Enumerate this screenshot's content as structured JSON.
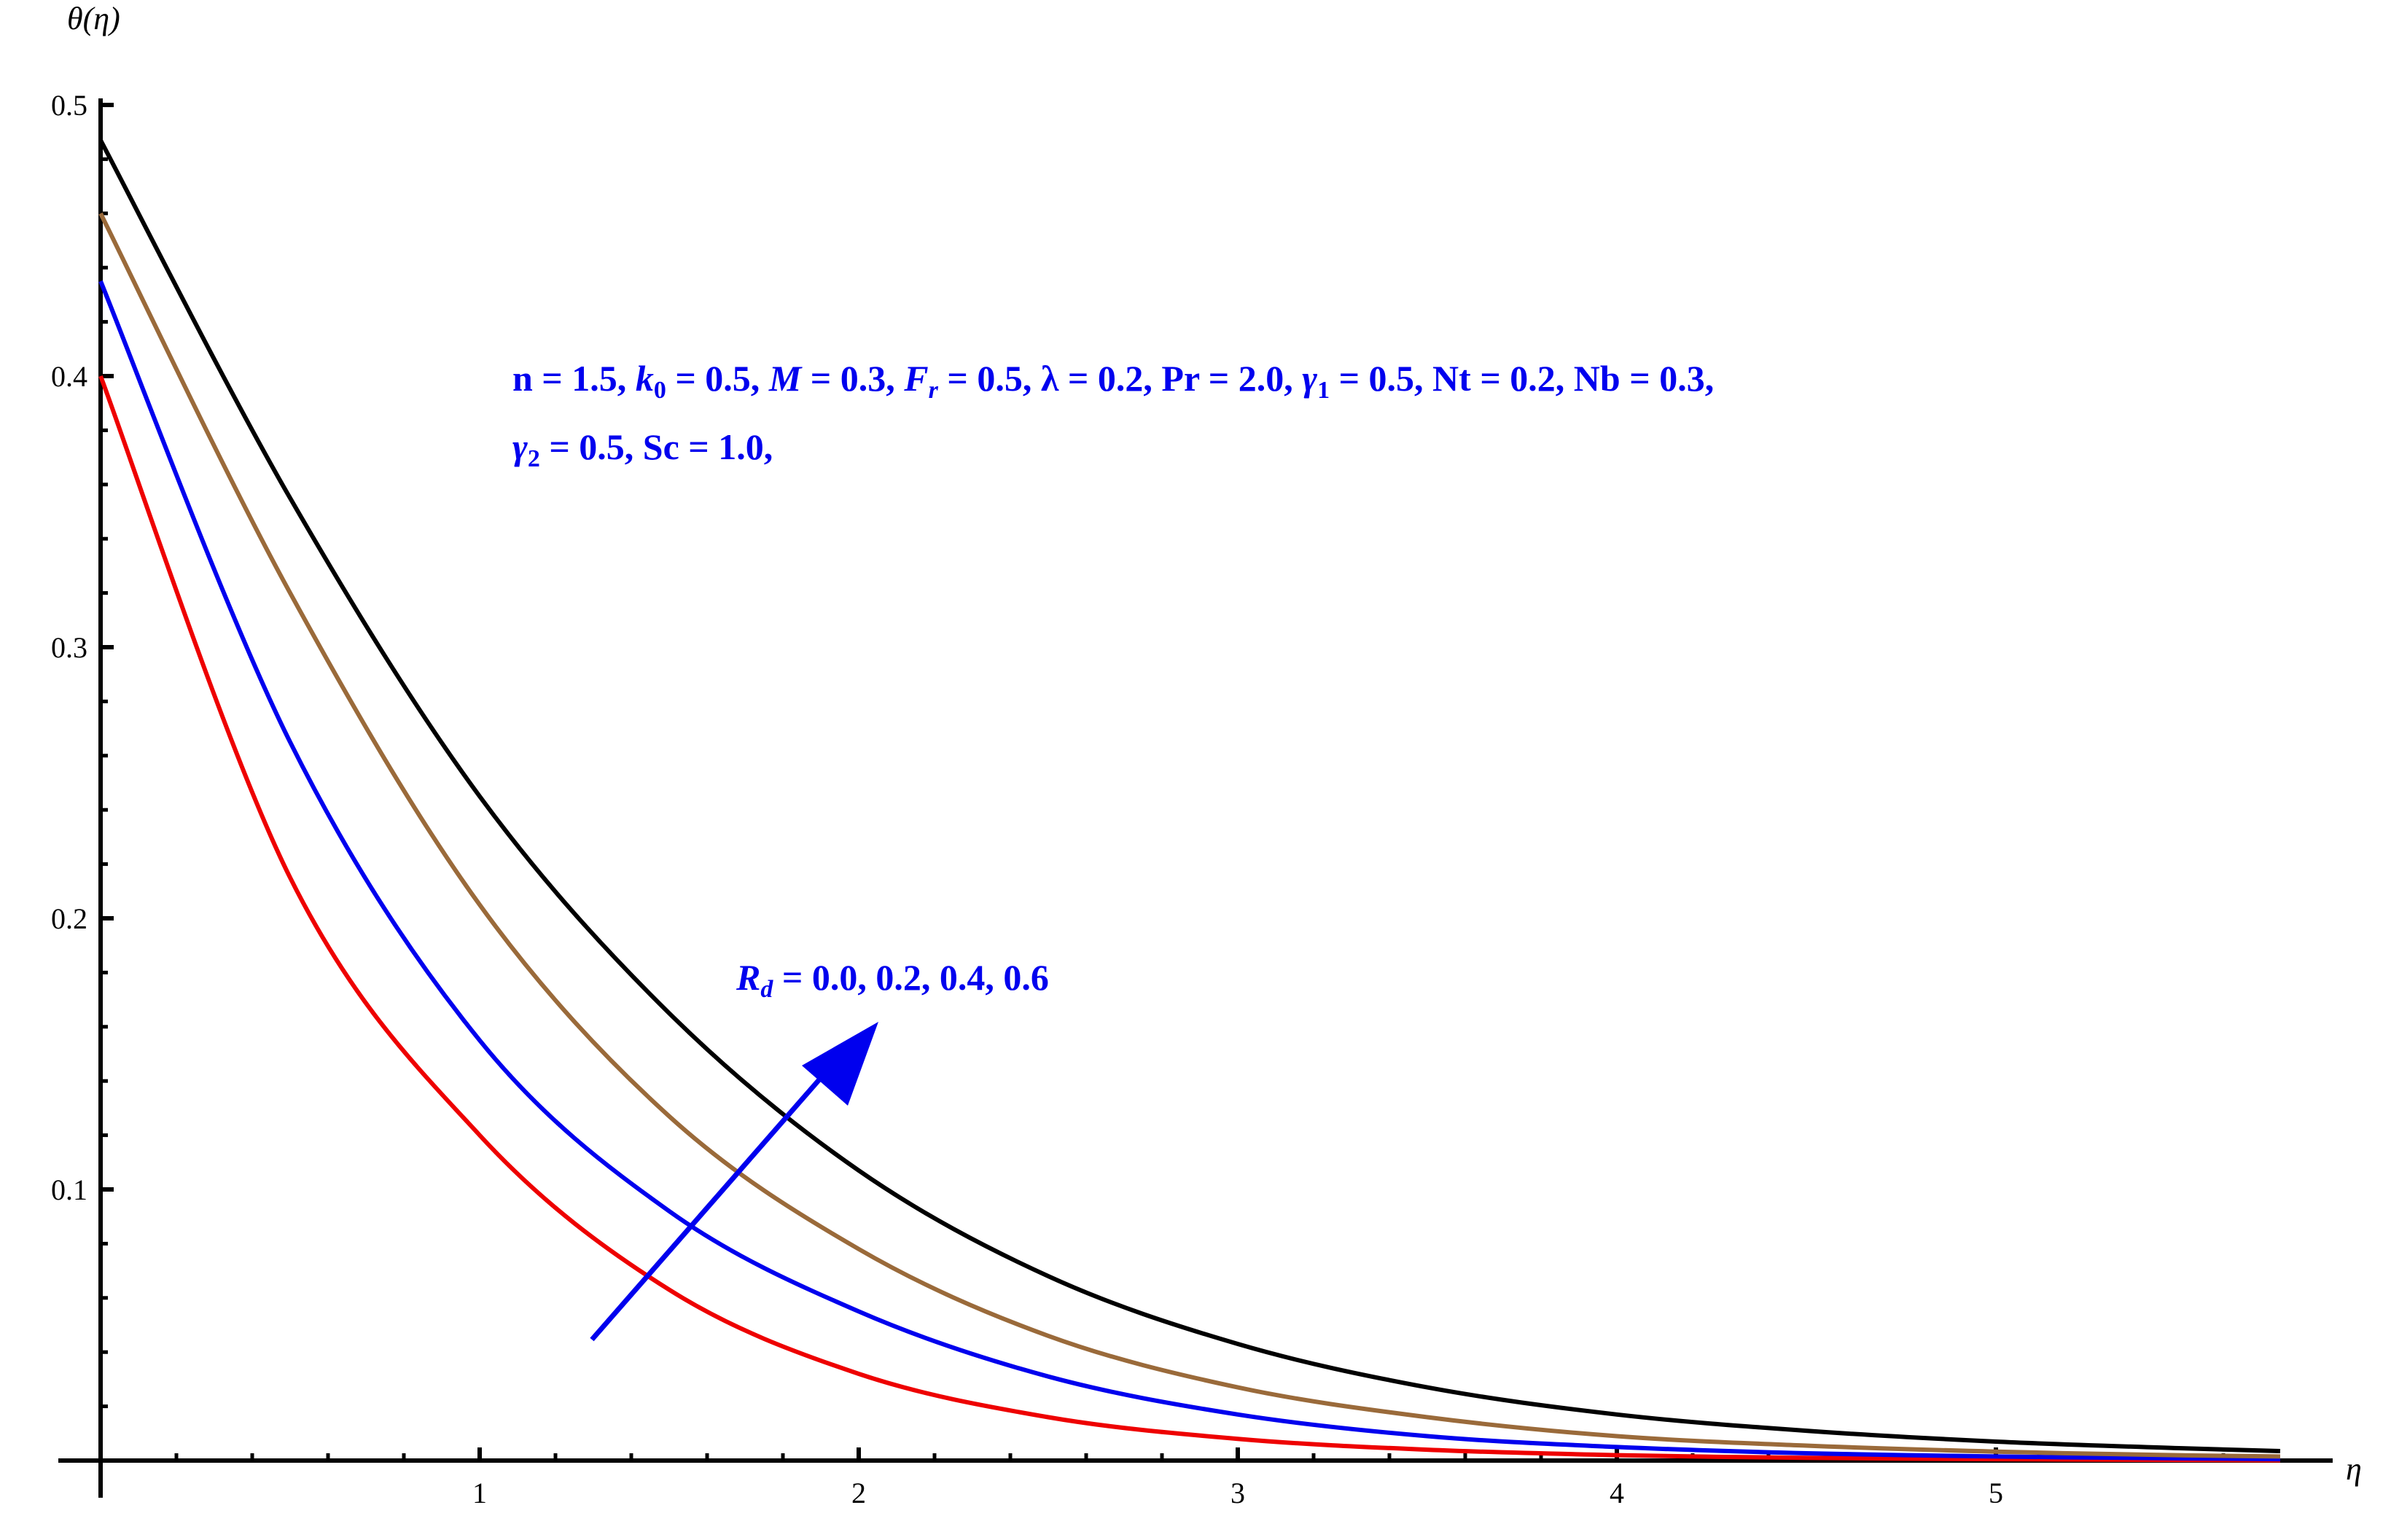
{
  "chart_data": {
    "type": "line",
    "xlabel": "η",
    "ylabel": "θ(η)",
    "xlim": [
      0,
      5.8
    ],
    "ylim": [
      0,
      0.5
    ],
    "x_ticks": [
      "1",
      "2",
      "3",
      "4",
      "5"
    ],
    "y_ticks": [
      "0.1",
      "0.2",
      "0.3",
      "0.4",
      "0.5"
    ],
    "grid": false,
    "legend": "none",
    "x": [
      0,
      0.5,
      1,
      1.5,
      2,
      2.5,
      3,
      3.5,
      4,
      4.5,
      5,
      5.5,
      5.75
    ],
    "series": [
      {
        "color": "#ee0000",
        "values": [
          0.4,
          0.215,
          0.12,
          0.063,
          0.032,
          0.016,
          0.008,
          0.004,
          0.002,
          0.001,
          0.0005,
          0.0002,
          0.0001
        ]
      },
      {
        "color": "#0000ee",
        "values": [
          0.435,
          0.265,
          0.155,
          0.092,
          0.055,
          0.031,
          0.017,
          0.009,
          0.005,
          0.0027,
          0.0015,
          0.0008,
          0.0005
        ]
      },
      {
        "color": "#9a6a3a",
        "values": [
          0.46,
          0.32,
          0.205,
          0.127,
          0.078,
          0.046,
          0.027,
          0.016,
          0.009,
          0.0055,
          0.0033,
          0.0019,
          0.0015
        ]
      },
      {
        "color": "#000000",
        "values": [
          0.487,
          0.355,
          0.245,
          0.165,
          0.107,
          0.068,
          0.043,
          0.027,
          0.017,
          0.011,
          0.007,
          0.0045,
          0.0035
        ]
      }
    ],
    "annotations": {
      "params_line1": "n = 1.5, k0 = 0.5, M = 0.3, Fr =  0.5, λ = 0.2, Pr = 2.0, γ1 = 0.5, Nt = 0.2, Nb = 0.3,",
      "params_line2": "γ2 = 0.5, Sc = 1.0,",
      "arrow_label": "Rd = 0.0, 0.2, 0.4, 0.6",
      "arrow_color": "#0000ee"
    }
  }
}
